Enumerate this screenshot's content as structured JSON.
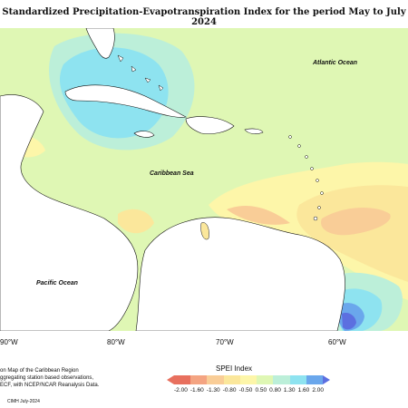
{
  "title": "Standardized Precipitation-Evapotranspiration Index for the period May to July 2024",
  "map": {
    "labels": {
      "atlantic": "Atlantic Ocean",
      "caribbean": "Caribbean Sea",
      "pacific": "Pacific Ocean"
    },
    "longitudes": [
      "90°W",
      "80°W",
      "70°W",
      "60°W"
    ]
  },
  "notes": {
    "line1": "on Map of the Caribbean Region",
    "line2": "ggregating station based observations,",
    "line3": "ECF, with NCEP/NCAR Reanalysis Data.",
    "credit": "CIMH July-2024"
  },
  "legend": {
    "title": "SPEI Index",
    "ticks": [
      "-2.00",
      "-1.60",
      "-1.30",
      "-0.80",
      "-0.50",
      "0.50",
      "0.80",
      "1.30",
      "1.60",
      "2.00"
    ],
    "colors": [
      "#e8705e",
      "#f4a482",
      "#f9cd97",
      "#fbe79b",
      "#fdf6a9",
      "#dff7b4",
      "#bcefd9",
      "#8ee3f0",
      "#6aa7ec",
      "#5c6fe0"
    ]
  },
  "colors": {
    "background_near_normal": "#dff7b4",
    "land": "#ffffff"
  }
}
